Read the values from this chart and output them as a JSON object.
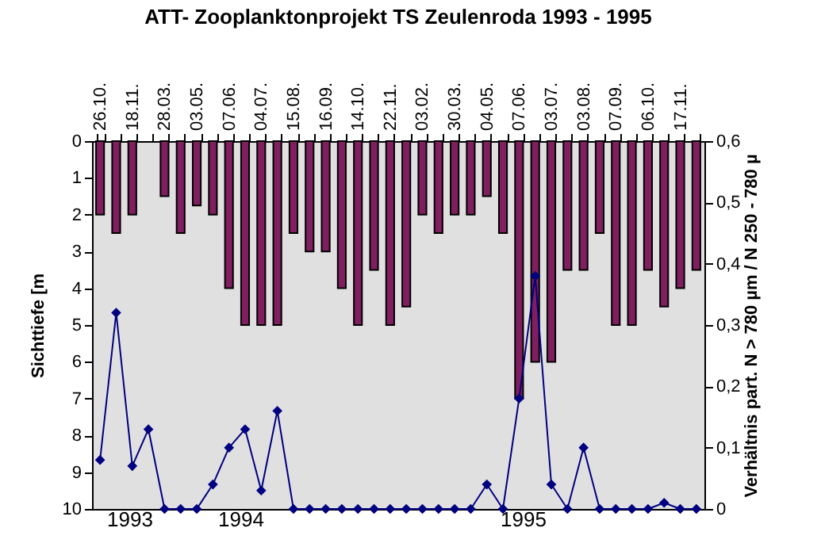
{
  "chart_data": {
    "type": "bar",
    "title": "ATT- Zooplanktonprojekt TS Zeulenroda 1993 - 1995",
    "categories": [
      "26.10.",
      null,
      "18.11.",
      null,
      "28.03.",
      null,
      "03.05.",
      null,
      "07.06.",
      null,
      "04.07.",
      null,
      "15.08.",
      null,
      "16.09.",
      null,
      "14.10.",
      null,
      "22.11.",
      null,
      "03.02.",
      null,
      "30.03.",
      null,
      "04.05.",
      null,
      "07.06.",
      null,
      "03.07.",
      null,
      "03.08.",
      null,
      "07.09.",
      null,
      "06.10.",
      null,
      "17.11.",
      null
    ],
    "ylabel": "Sichttiefe [m",
    "y2label": "Verhältnis part. N > 780 µm / N 250 - 780 µ",
    "annotations": [
      "1993",
      "1994",
      "1995"
    ],
    "series": [
      {
        "color": "#7f1f5f",
        "values": [
          2,
          2.5,
          2,
          null,
          1.5,
          2.5,
          1.75,
          2,
          4,
          5,
          5,
          5,
          2.5,
          3,
          3,
          4,
          5,
          3.5,
          5,
          4.5,
          2,
          2.5,
          2,
          2,
          1.5,
          2.5,
          7,
          6,
          6,
          3.5,
          3.5,
          2.5,
          5,
          5,
          3.5,
          4.5,
          4,
          3.5
        ]
      },
      {
        "type": "line",
        "axis": "y2",
        "color": "#000080",
        "marker": "diamond",
        "line_style": "solid",
        "values": [
          0.08,
          0.32,
          0.07,
          0.13,
          0,
          0,
          0,
          0.04,
          0.1,
          0.13,
          0.03,
          0.16,
          0,
          0,
          0,
          0,
          0,
          0,
          0,
          0,
          0,
          0,
          0,
          0,
          0.04,
          0,
          0.18,
          0.38,
          0.04,
          0,
          0.1,
          0,
          0,
          0,
          0,
          0.01,
          0,
          0
        ]
      }
    ],
    "ylim": [
      10,
      0
    ],
    "yticks": [
      0,
      1,
      2,
      3,
      4,
      5,
      6,
      7,
      8,
      9,
      10
    ],
    "y2lim": [
      0,
      0.6
    ],
    "y2ticks": [
      0,
      {
        "value": 0.1,
        "label": "0,1"
      },
      {
        "value": 0.2,
        "label": "0,2"
      },
      {
        "value": 0.3,
        "label": "0,3"
      },
      {
        "value": 0.4,
        "label": "0,4"
      },
      {
        "value": 0.5,
        "label": "0,5"
      },
      {
        "value": 0.6,
        "label": "0,6"
      }
    ],
    "grid": false
  }
}
